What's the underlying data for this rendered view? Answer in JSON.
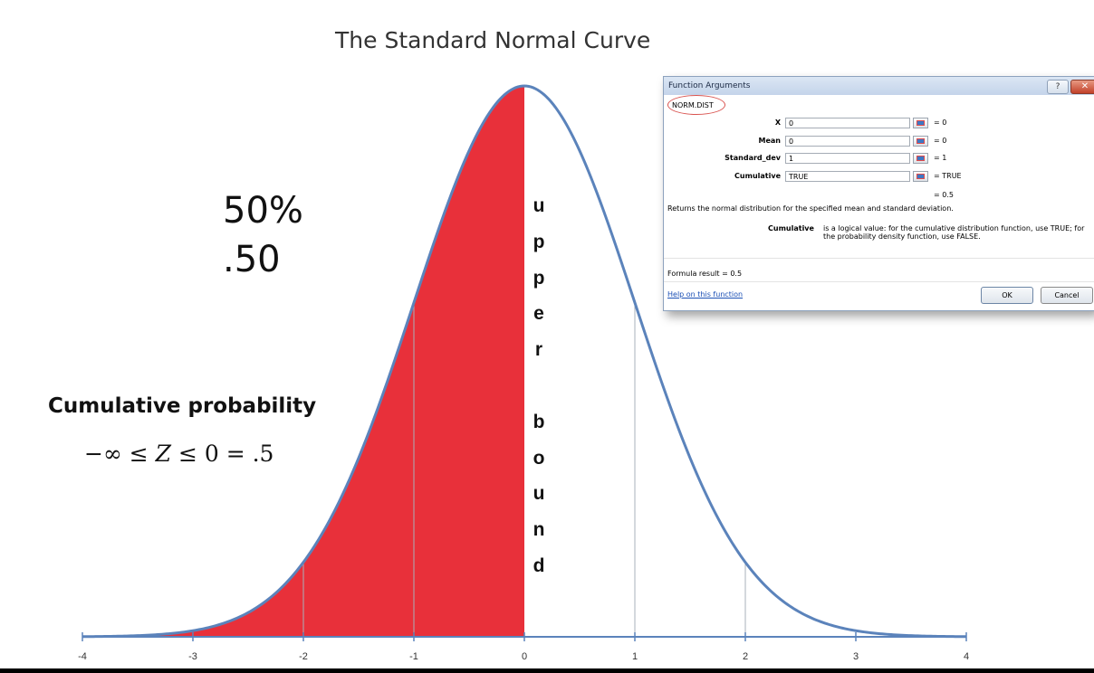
{
  "chart_data": {
    "type": "area",
    "title": "The Standard Normal Curve",
    "xlabel": "",
    "ylabel": "",
    "xlim": [
      -4,
      4
    ],
    "x_ticks": [
      "-4",
      "-3",
      "-2",
      "-1",
      "0",
      "1",
      "2",
      "3",
      "4"
    ],
    "grid": false,
    "series": [
      {
        "function": "standard normal density",
        "mean": 0,
        "std": 1,
        "color": "#5b83bb"
      }
    ],
    "shaded_region": {
      "from": -4,
      "to": 0,
      "color": "#e8303a"
    },
    "reference_lines_x": [
      -2,
      -1,
      1,
      2
    ]
  },
  "annotations": {
    "percent": "50%",
    "decimal": ".50",
    "cumulative_label": "Cumulative probability",
    "equation": {
      "prefix": "−∞ ≤ ",
      "var": "Z",
      "suffix": " ≤ 0 = .5"
    },
    "vertical_label": [
      "u",
      "p",
      "p",
      "e",
      "r",
      "",
      "b",
      "o",
      "u",
      "n",
      "d"
    ]
  },
  "dialog": {
    "title": "Function Arguments",
    "help_glyph": "?",
    "close_glyph": "✕",
    "function_name": "NORM.DIST",
    "args": [
      {
        "label": "X",
        "value": "0",
        "result": "= 0"
      },
      {
        "label": "Mean",
        "value": "0",
        "result": "= 0"
      },
      {
        "label": "Standard_dev",
        "value": "1",
        "result": "= 1"
      },
      {
        "label": "Cumulative",
        "value": "TRUE",
        "result": "= TRUE"
      }
    ],
    "result": "= 0.5",
    "description": "Returns the normal distribution for the specified mean and standard deviation.",
    "cumulative_label": "Cumulative",
    "cumulative_help": "is a logical value: for the cumulative distribution function, use TRUE; for the probability density function, use FALSE.",
    "formula_result": "Formula result =  0.5",
    "help_link": "Help on this function",
    "ok": "OK",
    "cancel": "Cancel"
  }
}
